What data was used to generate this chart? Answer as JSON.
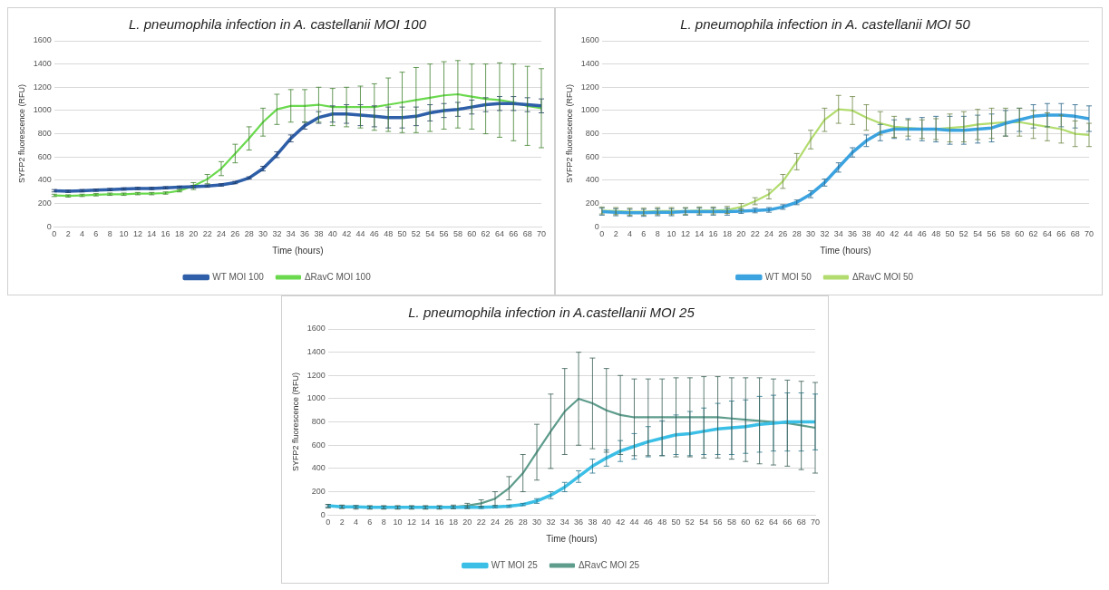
{
  "chart_data": [
    {
      "type": "line",
      "title": "L. pneumophila infection in A. castellanii MOI 100",
      "xlabel": "Time (hours)",
      "ylabel": "SYFP2 fluorescence (RFU)",
      "x": [
        0,
        2,
        4,
        6,
        8,
        10,
        12,
        14,
        16,
        18,
        20,
        22,
        24,
        26,
        28,
        30,
        32,
        34,
        36,
        38,
        40,
        42,
        44,
        46,
        48,
        50,
        52,
        54,
        56,
        58,
        60,
        62,
        64,
        66,
        68,
        70
      ],
      "xlim": [
        0,
        70
      ],
      "xticks": [
        0,
        2,
        4,
        6,
        8,
        10,
        12,
        14,
        16,
        18,
        20,
        22,
        24,
        26,
        28,
        30,
        32,
        34,
        36,
        38,
        40,
        42,
        44,
        46,
        48,
        50,
        52,
        54,
        56,
        58,
        60,
        62,
        64,
        66,
        68,
        70
      ],
      "ylim": [
        0,
        1600
      ],
      "yticks": [
        0,
        200,
        400,
        600,
        800,
        1000,
        1200,
        1400,
        1600
      ],
      "grid": "y",
      "legend": "bottom",
      "marker": "none",
      "line_style": "solid",
      "series": [
        {
          "name": "WT MOI 100",
          "color": "#2e5fa8",
          "values": [
            310,
            305,
            310,
            315,
            320,
            325,
            330,
            330,
            335,
            340,
            345,
            350,
            360,
            380,
            420,
            500,
            620,
            760,
            870,
            940,
            970,
            970,
            960,
            950,
            940,
            940,
            950,
            980,
            1000,
            1010,
            1030,
            1050,
            1060,
            1060,
            1050,
            1040
          ],
          "errors": [
            10,
            10,
            10,
            10,
            10,
            10,
            10,
            10,
            10,
            10,
            10,
            10,
            10,
            10,
            10,
            20,
            25,
            30,
            30,
            50,
            70,
            80,
            90,
            90,
            90,
            90,
            80,
            70,
            60,
            60,
            60,
            60,
            60,
            60,
            60,
            60
          ]
        },
        {
          "name": "ΔRavC MOI 100",
          "color": "#6ad94e",
          "values": [
            270,
            265,
            270,
            275,
            280,
            280,
            285,
            285,
            290,
            310,
            350,
            410,
            500,
            630,
            760,
            900,
            1010,
            1040,
            1040,
            1050,
            1030,
            1030,
            1030,
            1030,
            1050,
            1070,
            1090,
            1110,
            1130,
            1140,
            1120,
            1100,
            1090,
            1070,
            1040,
            1020
          ],
          "errors": [
            10,
            10,
            10,
            10,
            10,
            10,
            10,
            10,
            10,
            10,
            30,
            40,
            60,
            80,
            100,
            120,
            130,
            140,
            140,
            150,
            160,
            170,
            180,
            200,
            230,
            260,
            280,
            290,
            290,
            290,
            280,
            300,
            320,
            330,
            340,
            340
          ]
        }
      ]
    },
    {
      "type": "line",
      "title": "L. pneumophila infection in A. castellanii MOI 50",
      "xlabel": "Time (hours)",
      "ylabel": "SYFP2 fluorescence (RFU)",
      "x": [
        0,
        2,
        4,
        6,
        8,
        10,
        12,
        14,
        16,
        18,
        20,
        22,
        24,
        26,
        28,
        30,
        32,
        34,
        36,
        38,
        40,
        42,
        44,
        46,
        48,
        50,
        52,
        54,
        56,
        58,
        60,
        62,
        64,
        66,
        68,
        70
      ],
      "xlim": [
        0,
        70
      ],
      "xticks": [
        0,
        2,
        4,
        6,
        8,
        10,
        12,
        14,
        16,
        18,
        20,
        22,
        24,
        26,
        28,
        30,
        32,
        34,
        36,
        38,
        40,
        42,
        44,
        46,
        48,
        50,
        52,
        54,
        56,
        58,
        60,
        62,
        64,
        66,
        68,
        70
      ],
      "ylim": [
        0,
        1600
      ],
      "yticks": [
        0,
        200,
        400,
        600,
        800,
        1000,
        1200,
        1400,
        1600
      ],
      "grid": "y",
      "legend": "bottom",
      "marker": "none",
      "line_style": "solid",
      "series": [
        {
          "name": "WT MOI 50",
          "color": "#3ba3e0",
          "values": [
            130,
            125,
            120,
            120,
            125,
            125,
            130,
            130,
            130,
            130,
            135,
            140,
            145,
            170,
            210,
            280,
            380,
            510,
            640,
            740,
            810,
            840,
            840,
            840,
            840,
            830,
            830,
            840,
            850,
            890,
            920,
            950,
            960,
            960,
            950,
            930
          ],
          "errors": [
            30,
            30,
            30,
            30,
            30,
            30,
            30,
            30,
            30,
            30,
            20,
            20,
            20,
            20,
            20,
            30,
            30,
            40,
            40,
            50,
            70,
            80,
            90,
            100,
            110,
            120,
            120,
            120,
            120,
            110,
            100,
            100,
            100,
            100,
            100,
            110
          ]
        },
        {
          "name": "ΔRavC MOI 50",
          "color": "#b2dc6e",
          "values": [
            140,
            135,
            130,
            130,
            135,
            135,
            135,
            140,
            140,
            145,
            170,
            220,
            280,
            390,
            560,
            750,
            920,
            1010,
            1000,
            940,
            890,
            860,
            850,
            840,
            840,
            850,
            860,
            880,
            890,
            900,
            900,
            880,
            860,
            840,
            800,
            790
          ],
          "errors": [
            30,
            30,
            30,
            30,
            30,
            30,
            30,
            30,
            30,
            30,
            30,
            30,
            40,
            60,
            70,
            80,
            100,
            120,
            120,
            110,
            100,
            90,
            70,
            80,
            90,
            120,
            130,
            130,
            130,
            120,
            120,
            120,
            120,
            120,
            110,
            100
          ]
        }
      ]
    },
    {
      "type": "line",
      "title": "L. pneumophila infection in A.castellanii MOI 25",
      "xlabel": "Time (hours)",
      "ylabel": "SYFP2 fluorescence (RFU)",
      "x": [
        0,
        2,
        4,
        6,
        8,
        10,
        12,
        14,
        16,
        18,
        20,
        22,
        24,
        26,
        28,
        30,
        32,
        34,
        36,
        38,
        40,
        42,
        44,
        46,
        48,
        50,
        52,
        54,
        56,
        58,
        60,
        62,
        64,
        66,
        68,
        70
      ],
      "xlim": [
        0,
        70
      ],
      "xticks": [
        0,
        2,
        4,
        6,
        8,
        10,
        12,
        14,
        16,
        18,
        20,
        22,
        24,
        26,
        28,
        30,
        32,
        34,
        36,
        38,
        40,
        42,
        44,
        46,
        48,
        50,
        52,
        54,
        56,
        58,
        60,
        62,
        64,
        66,
        68,
        70
      ],
      "ylim": [
        0,
        1600
      ],
      "yticks": [
        0,
        200,
        400,
        600,
        800,
        1000,
        1200,
        1400,
        1600
      ],
      "grid": "y",
      "legend": "bottom",
      "marker": "none",
      "line_style": "solid",
      "series": [
        {
          "name": "WT MOI 25",
          "color": "#3bbfe6",
          "values": [
            80,
            70,
            70,
            65,
            65,
            65,
            65,
            65,
            65,
            65,
            65,
            65,
            70,
            75,
            90,
            120,
            170,
            240,
            330,
            420,
            490,
            550,
            590,
            630,
            660,
            690,
            700,
            720,
            740,
            750,
            760,
            780,
            790,
            800,
            800,
            800
          ],
          "errors": [
            10,
            10,
            10,
            10,
            10,
            10,
            10,
            10,
            10,
            10,
            10,
            10,
            10,
            10,
            10,
            20,
            30,
            40,
            50,
            60,
            70,
            90,
            110,
            130,
            150,
            170,
            190,
            200,
            220,
            230,
            230,
            240,
            240,
            250,
            250,
            240
          ]
        },
        {
          "name": "ΔRavC MOI 25",
          "color": "#5e9c8c",
          "values": [
            75,
            70,
            65,
            65,
            65,
            65,
            65,
            65,
            65,
            70,
            80,
            100,
            140,
            230,
            360,
            540,
            720,
            890,
            1000,
            960,
            900,
            860,
            840,
            840,
            840,
            840,
            840,
            840,
            840,
            830,
            820,
            810,
            800,
            790,
            770,
            750
          ],
          "errors": [
            15,
            15,
            15,
            15,
            15,
            15,
            15,
            15,
            15,
            15,
            20,
            30,
            60,
            100,
            160,
            240,
            320,
            370,
            400,
            390,
            360,
            340,
            330,
            330,
            330,
            340,
            340,
            350,
            350,
            350,
            360,
            370,
            370,
            370,
            380,
            390
          ]
        }
      ]
    }
  ]
}
